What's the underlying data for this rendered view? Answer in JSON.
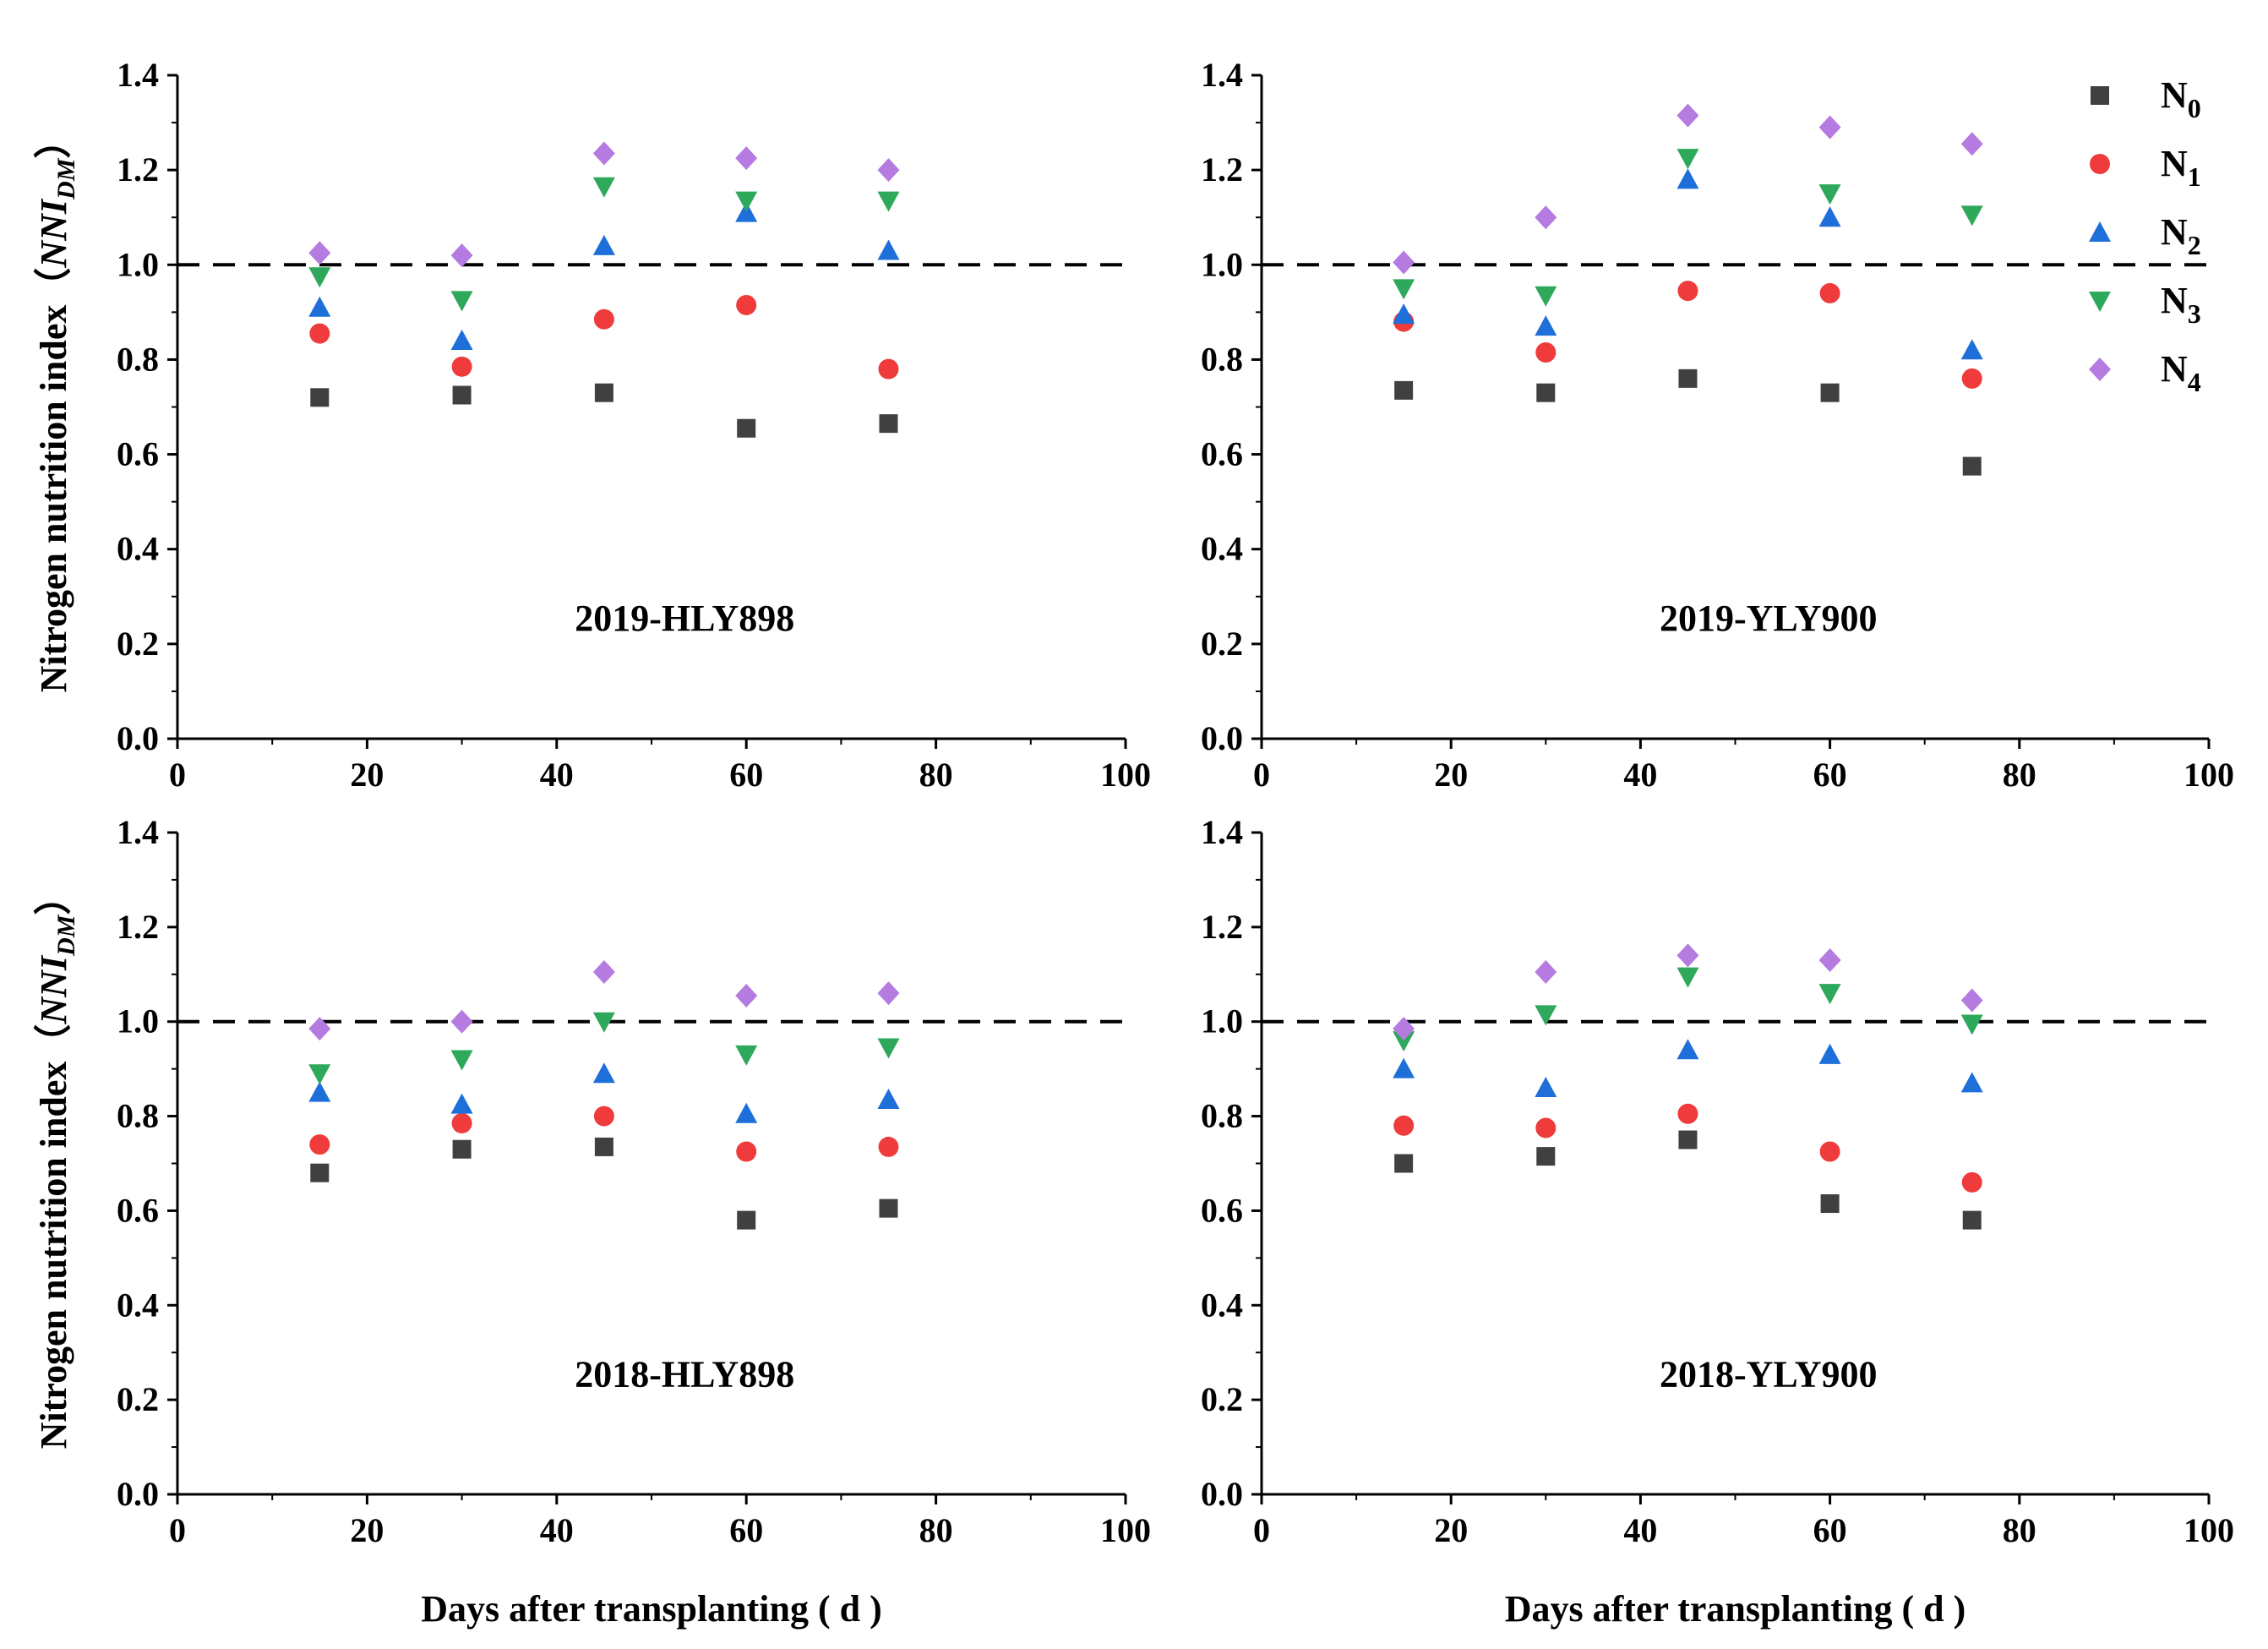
{
  "chart_data": [
    {
      "type": "scatter",
      "title": "2019-HLY898",
      "xlabel": "",
      "ylabel": "Nitrogen nutrition index（NNIDM）",
      "xlim": [
        0,
        100
      ],
      "ylim": [
        0,
        1.4
      ],
      "xticks": [
        "0",
        "20",
        "40",
        "60",
        "80",
        "100"
      ],
      "yticks": [
        "0.0",
        "0.2",
        "0.4",
        "0.6",
        "0.8",
        "1.0",
        "1.2",
        "1.4"
      ],
      "reference_line": 1.0,
      "x": [
        15,
        30,
        45,
        60,
        75
      ],
      "series": [
        {
          "name": "N0",
          "values": [
            0.72,
            0.725,
            0.73,
            0.655,
            0.665
          ]
        },
        {
          "name": "N1",
          "values": [
            0.855,
            0.785,
            0.885,
            0.915,
            0.78
          ]
        },
        {
          "name": "N2",
          "values": [
            0.91,
            0.84,
            1.04,
            1.11,
            1.03
          ]
        },
        {
          "name": "N3",
          "values": [
            0.975,
            0.925,
            1.165,
            1.135,
            1.135
          ]
        },
        {
          "name": "N4",
          "values": [
            1.025,
            1.02,
            1.235,
            1.225,
            1.2
          ]
        }
      ]
    },
    {
      "type": "scatter",
      "title": "2019-YLY900",
      "xlabel": "",
      "ylabel": "",
      "xlim": [
        0,
        100
      ],
      "ylim": [
        0,
        1.4
      ],
      "xticks": [
        "0",
        "20",
        "40",
        "60",
        "80",
        "100"
      ],
      "yticks": [
        "0.0",
        "0.2",
        "0.4",
        "0.6",
        "0.8",
        "1.0",
        "1.2",
        "1.4"
      ],
      "reference_line": 1.0,
      "x": [
        15,
        30,
        45,
        60,
        75
      ],
      "series": [
        {
          "name": "N0",
          "values": [
            0.735,
            0.73,
            0.76,
            0.73,
            0.575
          ]
        },
        {
          "name": "N1",
          "values": [
            0.88,
            0.815,
            0.945,
            0.94,
            0.76
          ]
        },
        {
          "name": "N2",
          "values": [
            0.895,
            0.87,
            1.18,
            1.1,
            0.82
          ]
        },
        {
          "name": "N3",
          "values": [
            0.95,
            0.935,
            1.225,
            1.15,
            1.105
          ]
        },
        {
          "name": "N4",
          "values": [
            1.005,
            1.1,
            1.315,
            1.29,
            1.255
          ]
        }
      ]
    },
    {
      "type": "scatter",
      "title": "2018-HLY898",
      "xlabel": "Days after transplanting ( d )",
      "ylabel": "Nitrogen nutrition index（NNIDM）",
      "xlim": [
        0,
        100
      ],
      "ylim": [
        0,
        1.4
      ],
      "xticks": [
        "0",
        "20",
        "40",
        "60",
        "80",
        "100"
      ],
      "yticks": [
        "0.0",
        "0.2",
        "0.4",
        "0.6",
        "0.8",
        "1.0",
        "1.2",
        "1.4"
      ],
      "reference_line": 1.0,
      "x": [
        15,
        30,
        45,
        60,
        75
      ],
      "series": [
        {
          "name": "N0",
          "values": [
            0.68,
            0.73,
            0.735,
            0.58,
            0.605
          ]
        },
        {
          "name": "N1",
          "values": [
            0.74,
            0.785,
            0.8,
            0.725,
            0.735
          ]
        },
        {
          "name": "N2",
          "values": [
            0.85,
            0.825,
            0.89,
            0.805,
            0.835
          ]
        },
        {
          "name": "N3",
          "values": [
            0.89,
            0.92,
            1.0,
            0.93,
            0.945
          ]
        },
        {
          "name": "N4",
          "values": [
            0.985,
            1.0,
            1.105,
            1.055,
            1.06
          ]
        }
      ]
    },
    {
      "type": "scatter",
      "title": "2018-YLY900",
      "xlabel": "Days after transplanting ( d )",
      "ylabel": "",
      "xlim": [
        0,
        100
      ],
      "ylim": [
        0,
        1.4
      ],
      "xticks": [
        "0",
        "20",
        "40",
        "60",
        "80",
        "100"
      ],
      "yticks": [
        "0.0",
        "0.2",
        "0.4",
        "0.6",
        "0.8",
        "1.0",
        "1.2",
        "1.4"
      ],
      "reference_line": 1.0,
      "x": [
        15,
        30,
        45,
        60,
        75
      ],
      "series": [
        {
          "name": "N0",
          "values": [
            0.7,
            0.715,
            0.75,
            0.615,
            0.58
          ]
        },
        {
          "name": "N1",
          "values": [
            0.78,
            0.775,
            0.805,
            0.725,
            0.66
          ]
        },
        {
          "name": "N2",
          "values": [
            0.9,
            0.86,
            0.94,
            0.93,
            0.87
          ]
        },
        {
          "name": "N3",
          "values": [
            0.96,
            1.015,
            1.095,
            1.06,
            0.995
          ]
        },
        {
          "name": "N4",
          "values": [
            0.985,
            1.105,
            1.14,
            1.13,
            1.045
          ]
        }
      ]
    }
  ],
  "legend": {
    "placement": "top-right",
    "items": [
      {
        "base": "N",
        "sub": "0",
        "color": "#404040",
        "marker": "square-icon"
      },
      {
        "base": "N",
        "sub": "1",
        "color": "#ef3b3b",
        "marker": "circle-icon"
      },
      {
        "base": "N",
        "sub": "2",
        "color": "#1e6fd9",
        "marker": "triangle-up-icon"
      },
      {
        "base": "N",
        "sub": "3",
        "color": "#2ea85a",
        "marker": "triangle-down-icon"
      },
      {
        "base": "N",
        "sub": "4",
        "color": "#b57be0",
        "marker": "diamond-icon"
      }
    ]
  },
  "ylabel_parts": {
    "main": "Nitrogen nutrition index",
    "open": "（",
    "nni": "NNI",
    "sub": "DM",
    "close": "）"
  }
}
